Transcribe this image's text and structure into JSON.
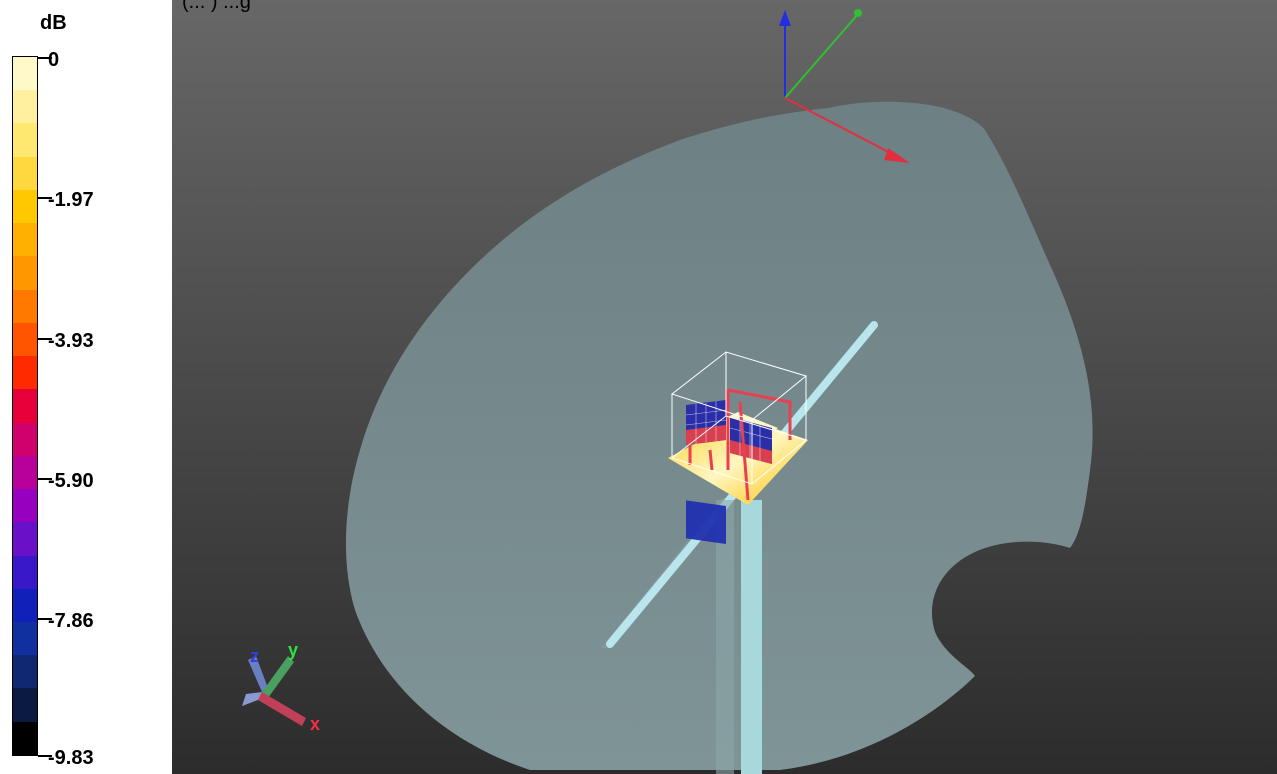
{
  "header": {
    "text": "(... ) ...g"
  },
  "legend": {
    "unit": "dB",
    "labels": [
      "0",
      "-1.97",
      "-3.93",
      "-5.90",
      "-7.86",
      "-9.83"
    ],
    "colors": [
      "#fff8c8",
      "#fff0a0",
      "#ffe870",
      "#ffd840",
      "#ffc800",
      "#ffb000",
      "#ff9800",
      "#ff7800",
      "#ff5400",
      "#ff2a00",
      "#e8003a",
      "#d0006c",
      "#b8009a",
      "#9800c0",
      "#6a10c8",
      "#3818c8",
      "#1020b8",
      "#1030a0",
      "#102870",
      "#0a1a40",
      "#000000"
    ]
  },
  "viewport": {
    "axis_labels": {
      "x": "x",
      "y": "y",
      "z": "z"
    }
  }
}
